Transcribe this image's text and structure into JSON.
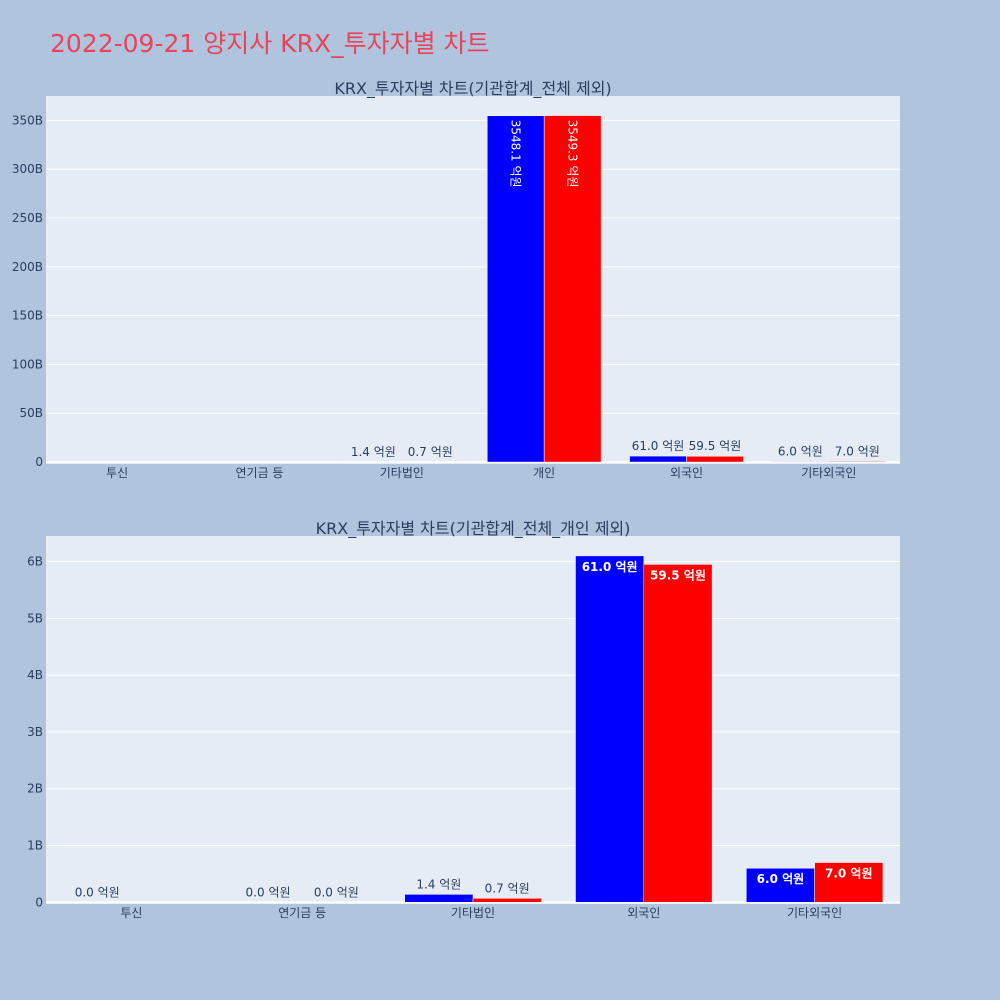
{
  "title": "2022-09-21 양지사 KRX_투자자별 차트",
  "colors": {
    "background": "#b0c4de",
    "plot_bg": "#e5ecf6",
    "title": "#e8455a",
    "series_buy": "#0000ff",
    "series_sell": "#ff0000"
  },
  "chart_data": [
    {
      "type": "bar",
      "title": "KRX_투자자별 차트(기관합계_전체 제외)",
      "categories": [
        "투신",
        "연기금 등",
        "기타법인",
        "개인",
        "외국인",
        "기타외국인"
      ],
      "series": [
        {
          "values": [
            0,
            0,
            1.4,
            3548.1,
            61.0,
            6.0
          ],
          "labels": [
            "",
            "",
            "1.4 억원",
            "3548.1 억원",
            "61.0 억원",
            "6.0 억원"
          ]
        },
        {
          "values": [
            0,
            0,
            0.7,
            3549.3,
            59.5,
            7.0
          ],
          "labels": [
            "",
            "",
            "0.7 억원",
            "3549.3 억원",
            "59.5 억원",
            "7.0 억원"
          ]
        }
      ],
      "value_unit": "억원",
      "ylim": [
        -20,
        3750
      ],
      "y_ticks": [
        {
          "value": 0,
          "label": "0"
        },
        {
          "value": 500,
          "label": "50B"
        },
        {
          "value": 1000,
          "label": "100B"
        },
        {
          "value": 1500,
          "label": "150B"
        },
        {
          "value": 2000,
          "label": "200B"
        },
        {
          "value": 2500,
          "label": "250B"
        },
        {
          "value": 3000,
          "label": "300B"
        },
        {
          "value": 3500,
          "label": "350B"
        }
      ],
      "grid": true,
      "barmode": "group"
    },
    {
      "type": "bar",
      "title": "KRX_투자자별 차트(기관합계_전체_개인 제외)",
      "categories": [
        "투신",
        "연기금 등",
        "기타법인",
        "외국인",
        "기타외국인"
      ],
      "series": [
        {
          "values": [
            0,
            0,
            1.4,
            61.0,
            6.0
          ],
          "labels": [
            "0.0 억원",
            "0.0 억원",
            "1.4 억원",
            "61.0 억원",
            "6.0 억원"
          ]
        },
        {
          "values": [
            null,
            0,
            0.7,
            59.5,
            7.0
          ],
          "labels": [
            "",
            "0.0 억원",
            "0.7 억원",
            "59.5 억원",
            "7.0 억원"
          ]
        }
      ],
      "value_unit": "억원",
      "ylim": [
        -0.3,
        64.5
      ],
      "y_ticks": [
        {
          "value": 0,
          "label": "0"
        },
        {
          "value": 10,
          "label": "1B"
        },
        {
          "value": 20,
          "label": "2B"
        },
        {
          "value": 30,
          "label": "3B"
        },
        {
          "value": 40,
          "label": "4B"
        },
        {
          "value": 50,
          "label": "5B"
        },
        {
          "value": 60,
          "label": "6B"
        }
      ],
      "grid": true,
      "barmode": "group"
    }
  ]
}
